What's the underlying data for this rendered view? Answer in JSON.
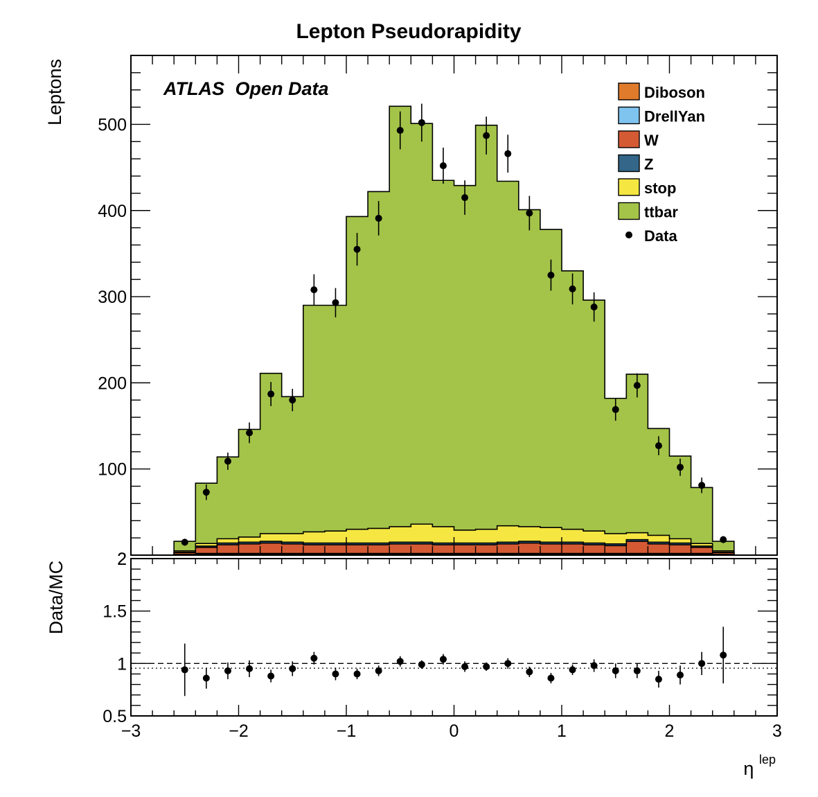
{
  "chart_data": {
    "type": "bar",
    "title": "Lepton Pseudorapidity",
    "annotation": {
      "bold": "ATLAS",
      "rest": "Open Data"
    },
    "xlabel": "η",
    "xlabel_sup": "lep",
    "ylabel": "Leptons",
    "ratio_ylabel": "Data/MC",
    "xlim": [
      -3,
      3
    ],
    "ylim": [
      0,
      580
    ],
    "ratio_ylim": [
      0.5,
      2
    ],
    "x_ticks": [
      "−3",
      "−2",
      "−1",
      "0",
      "1",
      "2",
      "3"
    ],
    "y_ticks": [
      "100",
      "200",
      "300",
      "400",
      "500"
    ],
    "y_zero_label": "2",
    "ratio_ticks": [
      "0.5",
      "1",
      "1.5",
      "2"
    ],
    "bin_edges": [
      -2.6,
      -2.4,
      -2.2,
      -2.0,
      -1.8,
      -1.6,
      -1.4,
      -1.2,
      -1.0,
      -0.8,
      -0.6,
      -0.4,
      -0.2,
      0.0,
      0.2,
      0.4,
      0.6,
      0.8,
      1.0,
      1.2,
      1.4,
      1.6,
      1.8,
      2.0,
      2.2,
      2.4,
      2.6
    ],
    "stack_order": [
      "Diboson",
      "DrellYan",
      "W",
      "Z",
      "stop",
      "ttbar"
    ],
    "series": [
      {
        "name": "Diboson",
        "color": "#e07b2c",
        "values": [
          0.5,
          1,
          1,
          1,
          1,
          1,
          1,
          1,
          1,
          1,
          1,
          1,
          1,
          1,
          1,
          1,
          1,
          1,
          1,
          1,
          1,
          1,
          1,
          1,
          1,
          0.5
        ]
      },
      {
        "name": "DrellYan",
        "color": "#7fc4ee",
        "values": [
          0.5,
          1,
          1,
          1,
          1,
          1,
          1,
          1,
          1,
          1,
          1,
          1,
          1,
          1,
          1,
          1,
          1,
          1,
          1,
          1,
          1,
          1,
          1,
          1,
          1,
          0.5
        ]
      },
      {
        "name": "W",
        "color": "#d45a34",
        "values": [
          2,
          7,
          10,
          11,
          12,
          11,
          10,
          10,
          10,
          10,
          11,
          11,
          10,
          10,
          10,
          11,
          12,
          11,
          11,
          10,
          9,
          14,
          11,
          10,
          7,
          2
        ]
      },
      {
        "name": "Z",
        "color": "#336688",
        "values": [
          0.5,
          1.5,
          2,
          2,
          2,
          2,
          2,
          2,
          2,
          2,
          2,
          2,
          2,
          2,
          2,
          2,
          2,
          2,
          2,
          2,
          2,
          2,
          2,
          2,
          1.5,
          0.5
        ]
      },
      {
        "name": "stop",
        "color": "#f5e642",
        "values": [
          1.5,
          3,
          5,
          6,
          9,
          10,
          13,
          14,
          16,
          17,
          18,
          21,
          19,
          15,
          16,
          19,
          17,
          17,
          15,
          14,
          12,
          8,
          8,
          5,
          3,
          1.5
        ]
      },
      {
        "name": "ttbar",
        "color": "#a4c449",
        "values": [
          11,
          70,
          95,
          125,
          186,
          159,
          263,
          262,
          363,
          391,
          488,
          465,
          402,
          400,
          469,
          400,
          368,
          346,
          300,
          268,
          157,
          184,
          124,
          96,
          65,
          11
        ]
      }
    ],
    "data": {
      "name": "Data",
      "x": [
        -2.5,
        -2.3,
        -2.1,
        -1.9,
        -1.7,
        -1.5,
        -1.3,
        -1.1,
        -0.9,
        -0.7,
        -0.5,
        -0.3,
        -0.1,
        0.1,
        0.3,
        0.5,
        0.7,
        0.9,
        1.1,
        1.3,
        1.5,
        1.7,
        1.9,
        2.1,
        2.3,
        2.5
      ],
      "y": [
        15,
        73,
        109,
        142,
        187,
        180,
        308,
        293,
        355,
        391,
        493,
        502,
        452,
        415,
        487,
        466,
        397,
        325,
        309,
        288,
        169,
        197,
        127,
        102,
        81,
        18
      ],
      "y_err": [
        4,
        9,
        10,
        12,
        14,
        13,
        18,
        17,
        19,
        20,
        22,
        22,
        21,
        20,
        22,
        22,
        20,
        18,
        18,
        17,
        13,
        14,
        11,
        10,
        9,
        4
      ],
      "ratio": [
        0.94,
        0.86,
        0.93,
        0.95,
        0.88,
        0.95,
        1.05,
        0.9,
        0.9,
        0.93,
        1.02,
        0.99,
        1.04,
        0.97,
        0.97,
        1.0,
        0.92,
        0.86,
        0.94,
        0.98,
        0.93,
        0.93,
        0.85,
        0.89,
        1.0,
        1.08
      ],
      "ratio_err": [
        0.25,
        0.1,
        0.08,
        0.08,
        0.06,
        0.07,
        0.06,
        0.06,
        0.05,
        0.05,
        0.05,
        0.04,
        0.05,
        0.05,
        0.04,
        0.05,
        0.05,
        0.05,
        0.05,
        0.06,
        0.07,
        0.07,
        0.08,
        0.09,
        0.11,
        0.27
      ]
    },
    "legend": [
      "Diboson",
      "DrellYan",
      "W",
      "Z",
      "stop",
      "ttbar",
      "Data"
    ],
    "legend_position": "top-right",
    "ratio_reference_lines": [
      1.0,
      0.955
    ],
    "grid": false
  }
}
